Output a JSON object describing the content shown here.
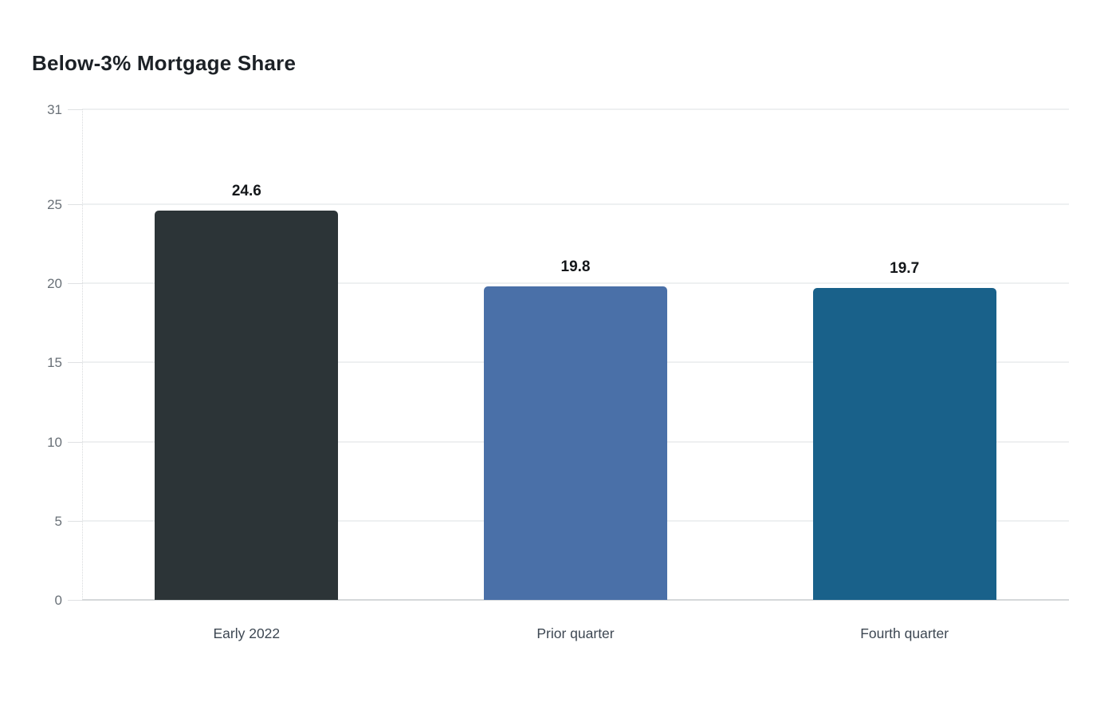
{
  "title": "Below-3% Mortgage Share",
  "chart_data": {
    "type": "bar",
    "title": "Below-3% Mortgage Share",
    "categories": [
      "Early 2022",
      "Prior quarter",
      "Fourth quarter"
    ],
    "values": [
      24.6,
      19.8,
      19.7
    ],
    "value_labels": [
      "24.6",
      "19.8",
      "19.7"
    ],
    "bar_colors": [
      "#2c3437",
      "#4a70a8",
      "#19618a"
    ],
    "yticks": [
      "0",
      "5",
      "10",
      "15",
      "20",
      "25",
      "31"
    ],
    "ytick_values": [
      0,
      5,
      10,
      15,
      20,
      25,
      31
    ],
    "ylim": [
      0,
      31
    ],
    "xlabel": "",
    "ylabel": "",
    "grid": true,
    "legend": false
  },
  "colors": {
    "background": "#ffffff",
    "title_text": "#1c2126",
    "value_text": "#14171a",
    "axis_tick_text": "#697077",
    "category_text": "#3d4752",
    "gridline": "#eef0f1",
    "baseline": "#d5d8da",
    "axis_dotted_line": "#d8dadc"
  }
}
